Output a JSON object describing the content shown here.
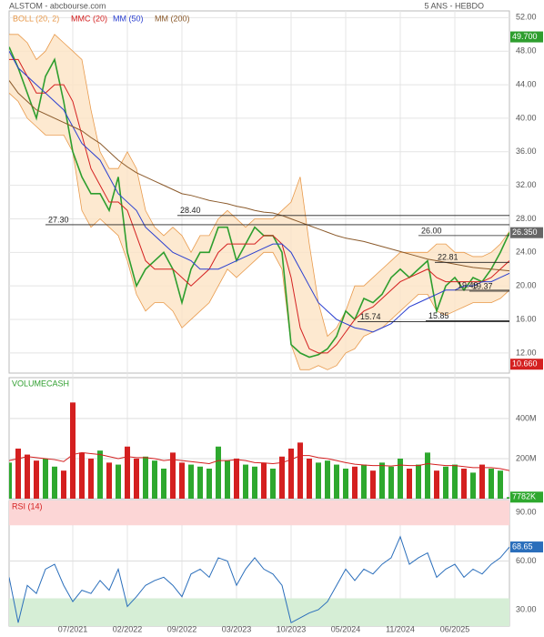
{
  "chart_data": [
    {
      "type": "line",
      "title": "ALSTOM - abcbourse.com",
      "subtitle": "5 ANS - HEBDO",
      "ylim": [
        9.6,
        52.8
      ],
      "yticks": [
        {
          "value": 12,
          "label": "12.00"
        },
        {
          "value": 16,
          "label": "16.00"
        },
        {
          "value": 20,
          "label": "20.00"
        },
        {
          "value": 24,
          "label": "24.00"
        },
        {
          "value": 28,
          "label": "28.00"
        },
        {
          "value": 32,
          "label": "32.00"
        },
        {
          "value": 36,
          "label": "36.00"
        },
        {
          "value": 40,
          "label": "40.00"
        },
        {
          "value": 44,
          "label": "44.00"
        },
        {
          "value": 48,
          "label": "48.00"
        },
        {
          "value": 52,
          "label": "52.00"
        }
      ],
      "grid": true,
      "band": {
        "name": "BOLL (20, 2)",
        "color": "#e89a4c",
        "upper": [
          50,
          50,
          49,
          47,
          48,
          50,
          49,
          48,
          47,
          41,
          36,
          34,
          34,
          36,
          34,
          29,
          27,
          26,
          27,
          26,
          24,
          26,
          26,
          28,
          29,
          28,
          27,
          28,
          28,
          28,
          29,
          30,
          33,
          25,
          18,
          14,
          15,
          17,
          20,
          20,
          21,
          22,
          23,
          24,
          24,
          24,
          24,
          25,
          25,
          24,
          24,
          23.5,
          23.5,
          24,
          25,
          26.5
        ],
        "lower": [
          43,
          42,
          40,
          39,
          38,
          38,
          38,
          36,
          29,
          27,
          28,
          27,
          26,
          23,
          19,
          17,
          18,
          18,
          17,
          15,
          16,
          17,
          18,
          20,
          22,
          21,
          22,
          23,
          24,
          24,
          22,
          13,
          10,
          10,
          10.5,
          10,
          10.5,
          12,
          12.5,
          14,
          14.5,
          15,
          16,
          17,
          18,
          19,
          19,
          17,
          16.5,
          17,
          17.5,
          18,
          18,
          18,
          18.5,
          19.5
        ]
      },
      "series": [
        {
          "color": "#2e9e2e",
          "values": [
            48.5,
            46,
            43,
            40,
            45,
            47,
            42,
            36,
            33,
            31,
            31,
            29,
            33,
            24,
            20,
            22,
            23,
            24,
            22,
            18,
            22,
            24,
            24,
            27,
            27,
            23,
            25,
            27,
            26,
            26,
            24,
            13,
            12,
            11.5,
            11.8,
            12.5,
            14,
            17,
            16,
            18.5,
            18,
            19,
            21,
            22,
            21,
            22,
            23,
            17,
            20,
            21,
            19.5,
            21,
            20.5,
            22,
            24,
            26.35
          ]
        },
        {
          "name": "MMC (20)",
          "color": "#d42020",
          "values": [
            47,
            47,
            45,
            43,
            43,
            44,
            44,
            42,
            38,
            34,
            32,
            30,
            30,
            29,
            26,
            23,
            22,
            22,
            22,
            21,
            20,
            21,
            22,
            24,
            25,
            25,
            25,
            25,
            26,
            26,
            25,
            21,
            15,
            12.5,
            12,
            12,
            13,
            14.5,
            16,
            17,
            17.5,
            18.5,
            19.5,
            20.5,
            21,
            21.5,
            22,
            21,
            20.5,
            20.5,
            20.5,
            20.5,
            20.5,
            21,
            22,
            23
          ]
        },
        {
          "name": "MM (50)",
          "color": "#2a3fd0",
          "values": [
            48,
            46,
            45,
            44,
            43,
            42,
            41,
            39,
            37,
            36,
            35,
            33,
            31,
            30,
            29,
            27,
            26,
            25,
            24,
            23.5,
            23,
            22,
            22,
            22,
            22.5,
            23,
            23.5,
            24,
            24.5,
            25,
            25,
            24,
            22,
            20,
            18,
            17,
            16,
            15.5,
            15,
            14.8,
            14.5,
            15,
            15.5,
            16.5,
            17.5,
            18,
            18.5,
            19,
            19.5,
            19.5,
            20,
            20,
            20.5,
            20.5,
            21,
            21.5
          ]
        },
        {
          "name": "MM (200)",
          "color": "#8b5a2b",
          "values": [
            44.5,
            43,
            42,
            41,
            40.5,
            40,
            39.5,
            39,
            38.5,
            37.7,
            37,
            36,
            35,
            34.2,
            33.5,
            33,
            32.5,
            32,
            31.5,
            31,
            30.8,
            30.5,
            30.2,
            30,
            29.8,
            29.5,
            29.3,
            29,
            28.8,
            28.7,
            28.4,
            28,
            27.6,
            27.2,
            26.8,
            26.4,
            26,
            25.7,
            25.5,
            25.3,
            25,
            24.7,
            24.4,
            24.1,
            23.8,
            23.5,
            23.2,
            23,
            22.8,
            22.6,
            22.4,
            22.2,
            22.1,
            22,
            21.9,
            21.8
          ]
        }
      ],
      "annotations": [
        {
          "value": 27.3,
          "label": "27.30"
        },
        {
          "value": 28.4,
          "label": "28.40"
        },
        {
          "value": 26,
          "label": "26.00"
        },
        {
          "value": 22.81,
          "label": "22.81"
        },
        {
          "value": 15.74,
          "label": "15.74"
        },
        {
          "value": 15.85,
          "label": "15.85"
        },
        {
          "value": 19.37,
          "label": "19.37"
        },
        {
          "value": 19.49,
          "label": "19.49"
        }
      ],
      "price_tags": [
        {
          "value": 49.7,
          "label": "49.700",
          "color": "#2e9e2e"
        },
        {
          "value": 26.35,
          "label": "26.350",
          "color": "#666666"
        },
        {
          "value": 10.66,
          "label": "10.660",
          "color": "#d42020"
        }
      ]
    },
    {
      "type": "bar",
      "title": "VOLUMECASH",
      "ylim": [
        0,
        604
      ],
      "yticks": [
        {
          "value": 200,
          "label": "200M"
        },
        {
          "value": 400,
          "label": "400M"
        }
      ],
      "values": [
        180,
        250,
        220,
        190,
        200,
        160,
        140,
        480,
        230,
        200,
        240,
        180,
        170,
        260,
        200,
        210,
        190,
        150,
        230,
        180,
        170,
        160,
        150,
        260,
        190,
        200,
        170,
        160,
        180,
        150,
        210,
        250,
        280,
        200,
        180,
        190,
        170,
        150,
        160,
        170,
        140,
        180,
        160,
        200,
        150,
        170,
        230,
        140,
        160,
        170,
        150,
        130,
        170,
        150,
        140,
        7.782
      ],
      "colors": [
        "#2ea82e",
        "#d42020"
      ],
      "ma": {
        "color": "#d42020",
        "values": [
          190,
          200,
          210,
          205,
          200,
          195,
          185,
          220,
          230,
          225,
          220,
          210,
          200,
          210,
          205,
          205,
          200,
          190,
          195,
          190,
          185,
          180,
          175,
          190,
          190,
          195,
          190,
          180,
          178,
          175,
          180,
          195,
          215,
          215,
          205,
          200,
          190,
          180,
          172,
          168,
          165,
          165,
          163,
          168,
          165,
          165,
          175,
          170,
          165,
          165,
          160,
          155,
          155,
          155,
          150,
          140
        ]
      },
      "last_tag": {
        "value": 7.782,
        "label": "7782K",
        "color": "#2ea82e"
      }
    },
    {
      "type": "line",
      "title": "RSI (14)",
      "ylim": [
        19.9,
        97.3
      ],
      "yticks": [
        {
          "value": 30,
          "label": "30.00"
        },
        {
          "value": 60,
          "label": "60.00"
        },
        {
          "value": 90,
          "label": "90.00"
        }
      ],
      "categories": [
        null,
        null,
        null,
        null,
        null,
        null,
        null,
        "07/2021",
        null,
        null,
        null,
        null,
        null,
        "02/2022",
        null,
        null,
        null,
        null,
        null,
        "09/2022",
        null,
        null,
        null,
        null,
        null,
        "03/2023",
        null,
        null,
        null,
        null,
        null,
        "10/2023",
        null,
        null,
        null,
        null,
        null,
        "05/2024",
        null,
        null,
        null,
        null,
        null,
        "11/2024",
        null,
        null,
        null,
        null,
        null,
        "06/2025",
        null,
        null,
        null,
        null,
        null,
        null
      ],
      "zones": [
        {
          "from": 82,
          "to": 97.3,
          "color": "#fcd6d6"
        },
        {
          "from": 19.9,
          "to": 37,
          "color": "#d6eed6"
        }
      ],
      "series": [
        {
          "color": "#2a6ebb",
          "values": [
            50,
            22,
            45,
            40,
            55,
            58,
            45,
            35,
            42,
            40,
            48,
            42,
            55,
            32,
            38,
            45,
            48,
            50,
            45,
            38,
            52,
            55,
            50,
            62,
            60,
            45,
            55,
            62,
            55,
            52,
            45,
            22,
            25,
            28,
            30,
            35,
            45,
            55,
            48,
            55,
            52,
            58,
            62,
            75,
            58,
            62,
            65,
            50,
            55,
            58,
            50,
            55,
            52,
            58,
            62,
            68.65
          ]
        }
      ],
      "last_tag": {
        "value": 68.65,
        "label": "68.65",
        "color": "#2a6ebb"
      }
    }
  ]
}
